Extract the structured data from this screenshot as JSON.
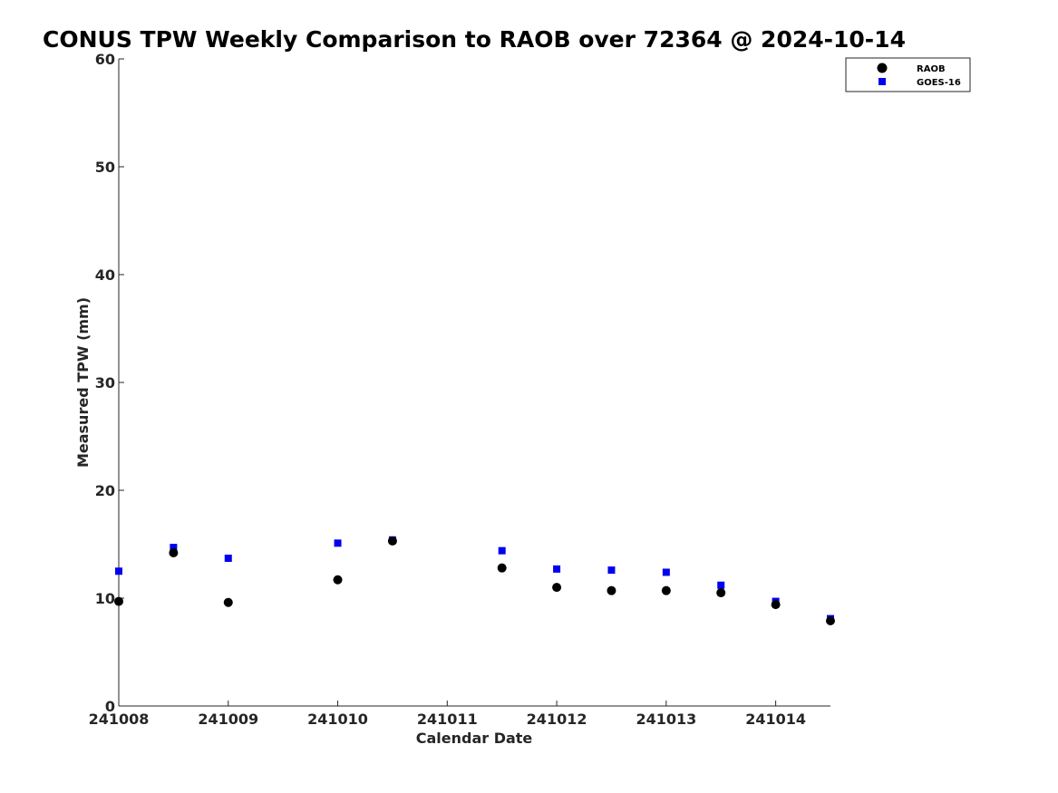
{
  "chart_data": {
    "type": "scatter",
    "title": "CONUS TPW Weekly Comparison to RAOB over 72364 @ 2024-10-14",
    "xlabel": "Calendar Date",
    "ylabel": "Measured TPW (mm)",
    "xlim": [
      241008,
      241014.5
    ],
    "ylim": [
      0,
      60
    ],
    "x_ticks": [
      241008,
      241009,
      241010,
      241011,
      241012,
      241013,
      241014
    ],
    "x_tick_labels": [
      "241008",
      "241009",
      "241010",
      "241011",
      "241012",
      "241013",
      "241014"
    ],
    "y_ticks": [
      0,
      10,
      20,
      30,
      40,
      50,
      60
    ],
    "y_tick_labels": [
      "0",
      "10",
      "20",
      "30",
      "40",
      "50",
      "60"
    ],
    "grid": false,
    "legend_position": "top-right",
    "series": [
      {
        "name": "RAOB",
        "marker": "circle",
        "color": "#000000",
        "x": [
          241008,
          241008.5,
          241009,
          241010,
          241010.5,
          241011.5,
          241012,
          241012.5,
          241013,
          241013.5,
          241014,
          241014.5
        ],
        "y": [
          9.7,
          14.2,
          9.6,
          11.7,
          15.3,
          12.8,
          11.0,
          10.7,
          10.7,
          10.5,
          9.4,
          7.9
        ]
      },
      {
        "name": "GOES-16",
        "marker": "square",
        "color": "#0000ee",
        "x": [
          241008,
          241008.5,
          241009,
          241010,
          241010.5,
          241011.5,
          241012,
          241012.5,
          241013,
          241013.5,
          241014,
          241014.5
        ],
        "y": [
          12.5,
          14.7,
          13.7,
          15.1,
          15.4,
          14.4,
          12.7,
          12.6,
          12.4,
          11.2,
          9.7,
          8.1
        ]
      }
    ]
  }
}
